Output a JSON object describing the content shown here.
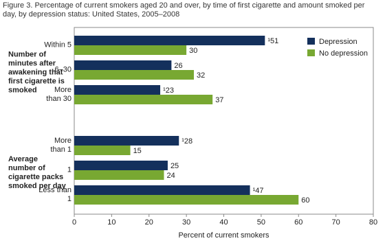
{
  "chart_data": {
    "type": "bar",
    "orientation": "horizontal",
    "title": "Figure 3. Percentage of current smokers aged 20 and over, by time of first cigarette and amount smoked per day, by depression status: United States, 2005–2008",
    "groups": [
      {
        "label": "Number of minutes after awakening that first cigarette is smoked",
        "categories": [
          "Within 5",
          "6–30",
          "More than 30"
        ]
      },
      {
        "label": "Average number of cigarette packs smoked per day",
        "categories": [
          "More than 1",
          "1",
          "Less than 1"
        ]
      }
    ],
    "series": [
      {
        "name": "Depression",
        "color": "#14305c",
        "values": [
          51,
          26,
          23,
          28,
          25,
          47
        ],
        "value_labels": [
          "¹51",
          "26",
          "¹23",
          "¹28",
          "25",
          "¹47"
        ]
      },
      {
        "name": "No depression",
        "color": "#78a832",
        "values": [
          30,
          32,
          37,
          15,
          24,
          60
        ]
      }
    ],
    "xlabel": "Percent of current smokers",
    "xlim": [
      0,
      80
    ],
    "xticks": [
      0,
      10,
      20,
      30,
      40,
      50,
      60,
      70,
      80
    ],
    "legend": "upper right"
  }
}
